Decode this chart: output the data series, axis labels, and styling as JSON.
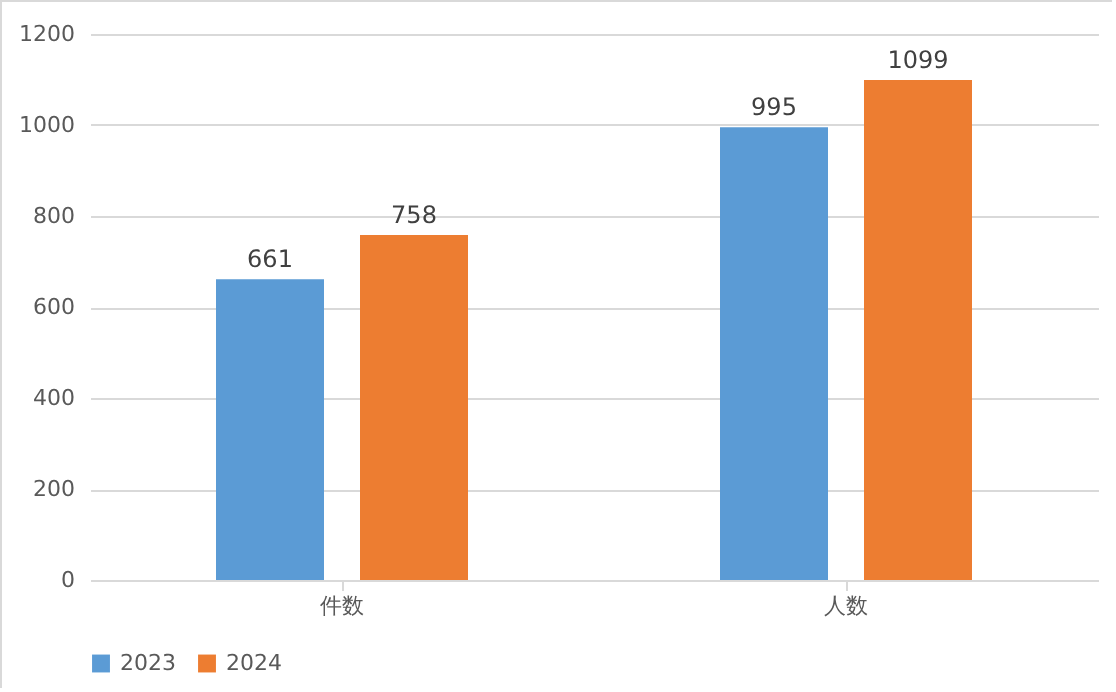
{
  "chart_data": {
    "type": "bar",
    "categories": [
      "件数",
      "人数"
    ],
    "series": [
      {
        "name": "2023",
        "color": "#5b9bd5",
        "values": [
          661,
          995
        ]
      },
      {
        "name": "2024",
        "color": "#ed7d31",
        "values": [
          758,
          1099
        ]
      }
    ],
    "ylim": [
      0,
      1200
    ],
    "yticks": [
      0,
      200,
      400,
      600,
      800,
      1000,
      1200
    ],
    "grid": "y",
    "legend": "bottom",
    "data_labels": true
  }
}
